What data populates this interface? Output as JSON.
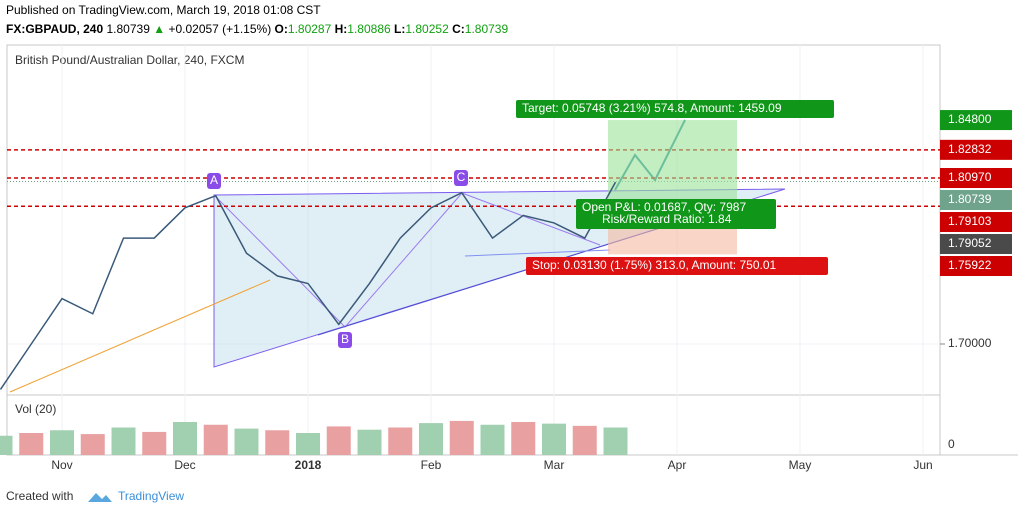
{
  "header": {
    "published": "Published on TradingView.com, March 19, 2018 01:08 CST",
    "symbol": "FX:GBPAUD, 240",
    "price": "1.80739",
    "arrow": "▲",
    "change": "+0.02057 (+1.15%)",
    "ohlc": [
      {
        "label": "O:",
        "value": "1.80287"
      },
      {
        "label": "H:",
        "value": "1.80886"
      },
      {
        "label": "L:",
        "value": "1.80252"
      },
      {
        "label": "C:",
        "value": "1.80739"
      }
    ]
  },
  "footer": {
    "created": "Created with",
    "brand": "TradingView"
  },
  "chart_data": {
    "type": "line",
    "title": "British Pound/Australian Dollar, 240, FXCM",
    "color": "#3a5a7a",
    "categories": [
      null,
      null,
      "Nov",
      null,
      null,
      null,
      "Dec",
      null,
      null,
      null,
      "2018",
      null,
      null,
      null,
      "Feb",
      null,
      null,
      null,
      "Mar",
      null,
      null,
      null,
      "Apr",
      null,
      null,
      null,
      "May",
      null,
      null,
      null,
      "Jun"
    ],
    "values": [
      1.67,
      1.7,
      1.73,
      1.72,
      1.77,
      1.77,
      1.79,
      1.798,
      1.76,
      1.745,
      1.74,
      1.713,
      1.74,
      1.77,
      1.79,
      1.8,
      1.77,
      1.785,
      1.78,
      1.77,
      1.807,
      null,
      null,
      null,
      null,
      null,
      null,
      null,
      null,
      null,
      null
    ],
    "ylim": [
      1.6663,
      1.8976
    ],
    "yticks": [
      {
        "value": 1.7,
        "label": "1.70000"
      }
    ],
    "price_labels": [
      {
        "value": 1.848,
        "label": "1.84800",
        "color": "#109618"
      },
      {
        "value": 1.82832,
        "label": "1.82832",
        "color": "#cc0000"
      },
      {
        "value": 1.8097,
        "label": "1.80970",
        "color": "#cc0000"
      },
      {
        "value": 1.80739,
        "label": "1.80739",
        "color": "#6fa38c"
      },
      {
        "value": 1.79103,
        "label": "1.79103",
        "color": "#cc0000"
      },
      {
        "value": 1.79052,
        "label": "1.79052",
        "color": "#4a4a4a"
      },
      {
        "value": 1.75922,
        "label": "1.75922",
        "color": "#cc0000"
      }
    ],
    "volume": {
      "label": "Vol (20)",
      "values": [
        35,
        40,
        45,
        38,
        50,
        42,
        60,
        55,
        48,
        45,
        40,
        52,
        46,
        50,
        58,
        62,
        55,
        60,
        57,
        53,
        50
      ],
      "ylim": [
        0,
        100
      ],
      "yticks": [
        0
      ]
    },
    "annotations": {
      "a": "A",
      "b": "B",
      "c": "C",
      "target": "Target: 0.05748 (3.21%) 574.8, Amount: 1459.09",
      "stop": "Stop: 0.03130 (1.75%) 313.0, Amount: 750.01",
      "pnl": "Open P&L: 0.01687, Qty: 7987",
      "rr": "Risk/Reward Ratio: 1.84"
    }
  }
}
